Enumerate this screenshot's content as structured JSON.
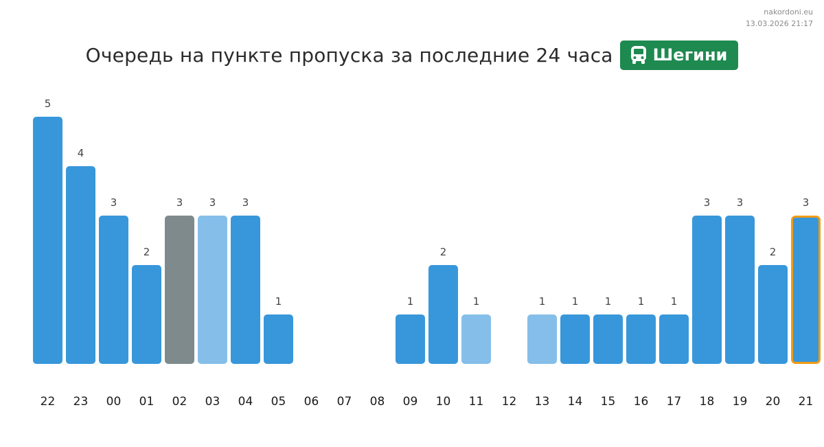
{
  "source": {
    "site": "nakordoni.eu",
    "timestamp": "13.03.2026 21:17"
  },
  "header": {
    "title": "Очередь на пункте пропуска за последние 24 часа",
    "badge_label": "Шегини",
    "badge_icon": "bus-icon",
    "badge_color": "#1e8a50"
  },
  "chart_data": {
    "type": "bar",
    "title": "Очередь на пункте пропуска за последние 24 часа",
    "xlabel": "",
    "ylabel": "",
    "ylim": [
      0,
      5
    ],
    "grid": false,
    "legend": "none",
    "categories": [
      "22",
      "23",
      "00",
      "01",
      "02",
      "03",
      "04",
      "05",
      "06",
      "07",
      "08",
      "09",
      "10",
      "11",
      "12",
      "13",
      "14",
      "15",
      "16",
      "17",
      "18",
      "19",
      "20",
      "21"
    ],
    "values": [
      5,
      4,
      3,
      2,
      3,
      3,
      3,
      1,
      null,
      null,
      null,
      1,
      2,
      1,
      null,
      1,
      1,
      1,
      1,
      1,
      3,
      3,
      2,
      3
    ],
    "bar_styles": [
      "normal",
      "normal",
      "normal",
      "normal",
      "gray",
      "light",
      "normal",
      "normal",
      "normal",
      "normal",
      "normal",
      "normal",
      "normal",
      "light",
      "normal",
      "light",
      "normal",
      "normal",
      "normal",
      "normal",
      "normal",
      "normal",
      "normal",
      "highlighted"
    ],
    "colors": {
      "normal": "#3897db",
      "light": "#85bfe9",
      "gray": "#7e8a8b",
      "highlight_border": "#f29c12"
    }
  }
}
